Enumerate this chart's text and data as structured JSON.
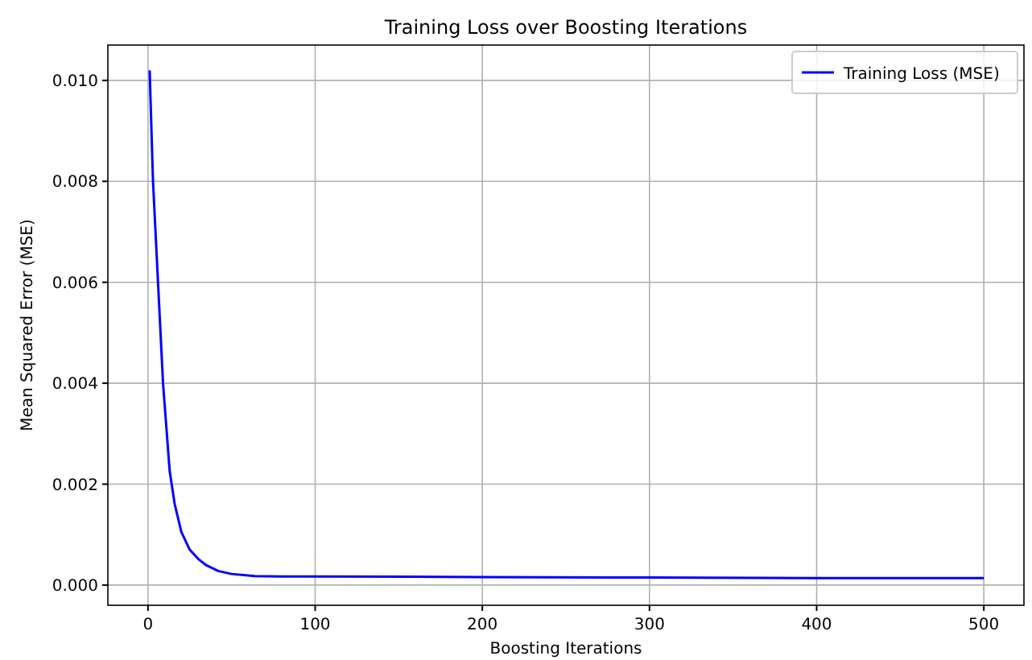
{
  "chart_data": {
    "type": "line",
    "title": "Training Loss over Boosting Iterations",
    "xlabel": "Boosting Iterations",
    "ylabel": "Mean Squared Error (MSE)",
    "xlim": [
      -24,
      524
    ],
    "ylim": [
      -0.0004,
      0.0107
    ],
    "xticks": [
      0,
      100,
      200,
      300,
      400,
      500
    ],
    "yticks": [
      {
        "value": 0,
        "label": "0.000"
      },
      {
        "value": 0.002,
        "label": "0.002"
      },
      {
        "value": 0.004,
        "label": "0.004"
      },
      {
        "value": 0.006,
        "label": "0.006"
      },
      {
        "value": 0.008,
        "label": "0.008"
      },
      {
        "value": 0.01,
        "label": "0.010"
      }
    ],
    "grid": true,
    "legend": "top right",
    "series": [
      {
        "name": "Training Loss (MSE)",
        "color": "#0000ff",
        "x": [
          1,
          3,
          6,
          9,
          13,
          16,
          20,
          25,
          30,
          35,
          42,
          50,
          64,
          80,
          100,
          200,
          300,
          400,
          500
        ],
        "values": [
          0.0102,
          0.008,
          0.006,
          0.004,
          0.00225,
          0.0016,
          0.00105,
          0.0007,
          0.00052,
          0.00039,
          0.00028,
          0.00022,
          0.00018,
          0.00017,
          0.00017,
          0.00016,
          0.00015,
          0.00014,
          0.00014
        ]
      }
    ]
  }
}
